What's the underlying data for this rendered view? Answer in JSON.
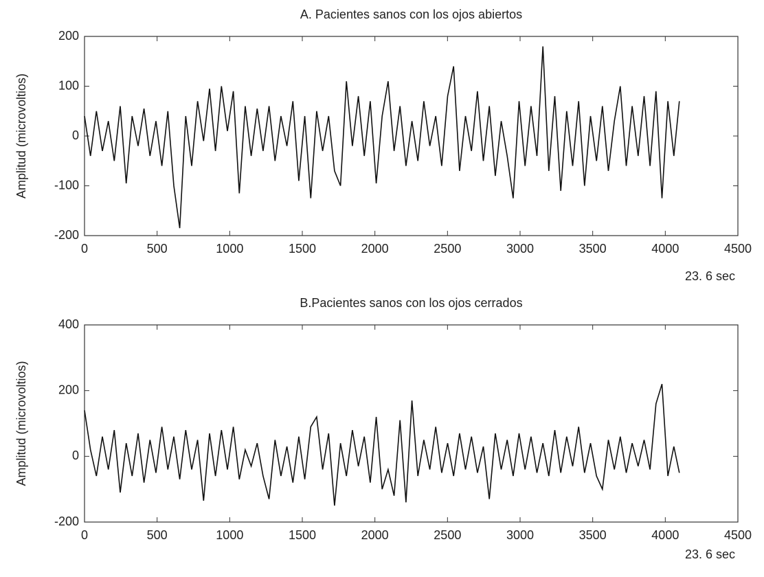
{
  "chart_data": [
    {
      "type": "line",
      "title": "A. Pacientes sanos con los ojos abiertos",
      "y_label": "Amplitud (microvoltios)",
      "x_label": "23. 6 sec",
      "color": "#111111",
      "xlim": [
        0,
        4500
      ],
      "xticks": [
        0,
        500,
        1000,
        1500,
        2000,
        2500,
        3000,
        3500,
        4000,
        4500
      ],
      "ylim": [
        -200,
        200
      ],
      "yticks": [
        -200,
        -100,
        0,
        100,
        200
      ],
      "x": [
        0,
        41,
        82,
        123,
        164,
        205,
        246,
        287,
        328,
        369,
        410,
        451,
        492,
        533,
        574,
        615,
        656,
        697,
        738,
        779,
        820,
        861,
        902,
        943,
        984,
        1025,
        1066,
        1107,
        1148,
        1189,
        1230,
        1271,
        1312,
        1353,
        1394,
        1435,
        1476,
        1517,
        1558,
        1599,
        1640,
        1681,
        1722,
        1763,
        1804,
        1845,
        1886,
        1927,
        1968,
        2009,
        2050,
        2091,
        2132,
        2173,
        2214,
        2255,
        2296,
        2337,
        2378,
        2419,
        2460,
        2501,
        2542,
        2583,
        2624,
        2665,
        2706,
        2747,
        2788,
        2829,
        2870,
        2911,
        2952,
        2993,
        3034,
        3075,
        3116,
        3157,
        3198,
        3239,
        3280,
        3321,
        3362,
        3403,
        3444,
        3485,
        3526,
        3567,
        3608,
        3649,
        3690,
        3731,
        3772,
        3813,
        3854,
        3895,
        3936,
        3977,
        4018,
        4059,
        4097
      ],
      "values": [
        40,
        -40,
        50,
        -30,
        30,
        -50,
        60,
        -95,
        40,
        -20,
        55,
        -40,
        30,
        -60,
        50,
        -100,
        -185,
        40,
        -60,
        70,
        -10,
        95,
        -30,
        100,
        10,
        90,
        -115,
        60,
        -40,
        55,
        -30,
        60,
        -50,
        40,
        -20,
        70,
        -90,
        40,
        -125,
        50,
        -30,
        40,
        -70,
        -100,
        110,
        -20,
        80,
        -40,
        70,
        -95,
        40,
        110,
        -30,
        60,
        -60,
        30,
        -50,
        70,
        -20,
        40,
        -60,
        80,
        140,
        -70,
        40,
        -30,
        90,
        -50,
        60,
        -80,
        30,
        -40,
        -125,
        70,
        -60,
        60,
        -40,
        180,
        -70,
        80,
        -110,
        50,
        -60,
        70,
        -100,
        40,
        -50,
        60,
        -70,
        30,
        100,
        -60,
        60,
        -40,
        80,
        -60,
        90,
        -125,
        70,
        -40,
        70
      ]
    },
    {
      "type": "line",
      "title": "B.Pacientes sanos con los ojos cerrados",
      "y_label": "Amplitud (microvoltios)",
      "x_label": "23. 6 sec",
      "color": "#111111",
      "xlim": [
        0,
        4500
      ],
      "xticks": [
        0,
        500,
        1000,
        1500,
        2000,
        2500,
        3000,
        3500,
        4000,
        4500
      ],
      "ylim": [
        -200,
        400
      ],
      "yticks": [
        -200,
        0,
        200,
        400
      ],
      "x": [
        0,
        41,
        82,
        123,
        164,
        205,
        246,
        287,
        328,
        369,
        410,
        451,
        492,
        533,
        574,
        615,
        656,
        697,
        738,
        779,
        820,
        861,
        902,
        943,
        984,
        1025,
        1066,
        1107,
        1148,
        1189,
        1230,
        1271,
        1312,
        1353,
        1394,
        1435,
        1476,
        1517,
        1558,
        1599,
        1640,
        1681,
        1722,
        1763,
        1804,
        1845,
        1886,
        1927,
        1968,
        2009,
        2050,
        2091,
        2132,
        2173,
        2214,
        2255,
        2296,
        2337,
        2378,
        2419,
        2460,
        2501,
        2542,
        2583,
        2624,
        2665,
        2706,
        2747,
        2788,
        2829,
        2870,
        2911,
        2952,
        2993,
        3034,
        3075,
        3116,
        3157,
        3198,
        3239,
        3280,
        3321,
        3362,
        3403,
        3444,
        3485,
        3526,
        3567,
        3608,
        3649,
        3690,
        3731,
        3772,
        3813,
        3854,
        3895,
        3936,
        3977,
        4018,
        4059,
        4097
      ],
      "values": [
        140,
        20,
        -60,
        60,
        -40,
        80,
        -110,
        40,
        -60,
        70,
        -80,
        50,
        -50,
        90,
        -40,
        60,
        -70,
        80,
        -40,
        50,
        -135,
        70,
        -60,
        80,
        -40,
        90,
        -70,
        20,
        -30,
        40,
        -60,
        -130,
        50,
        -60,
        30,
        -80,
        60,
        -70,
        90,
        120,
        -40,
        70,
        -150,
        40,
        -60,
        80,
        -30,
        60,
        -80,
        120,
        -100,
        -40,
        -120,
        110,
        -140,
        170,
        -60,
        50,
        -40,
        90,
        -50,
        40,
        -60,
        70,
        -40,
        60,
        -50,
        30,
        -130,
        70,
        -40,
        50,
        -60,
        70,
        -40,
        60,
        -50,
        40,
        -60,
        80,
        -50,
        60,
        -30,
        90,
        -50,
        40,
        -60,
        -100,
        50,
        -40,
        60,
        -50,
        40,
        -30,
        50,
        -40,
        160,
        220,
        -60,
        30,
        -50
      ]
    }
  ]
}
